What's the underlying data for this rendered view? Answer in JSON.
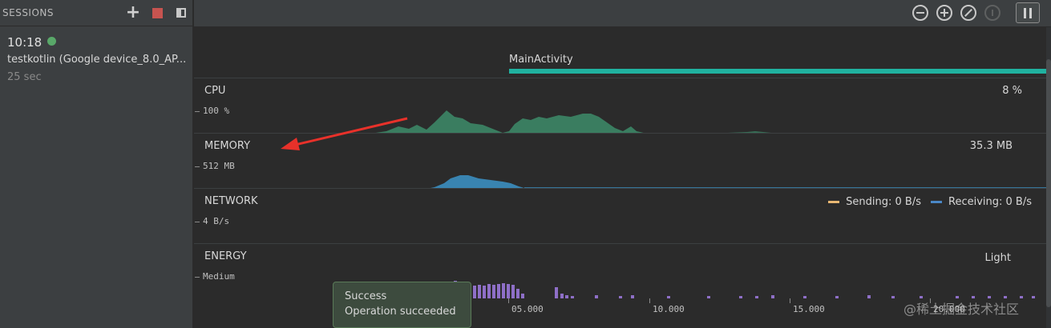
{
  "sessions": {
    "title": "SESSIONS",
    "session": {
      "time": "10:18",
      "name": "testkotlin (Google device_8.0_AP...",
      "duration": "25 sec"
    }
  },
  "activity": {
    "label": "MainActivity"
  },
  "cpu": {
    "title": "CPU",
    "scale": "100 %",
    "value": "8 %"
  },
  "memory": {
    "title": "MEMORY",
    "scale": "512 MB",
    "value": "35.3 MB"
  },
  "network": {
    "title": "NETWORK",
    "scale": "4 B/s",
    "sending": "Sending: 0 B/s",
    "receiving": "Receiving: 0 B/s"
  },
  "energy": {
    "title": "ENERGY",
    "scale": "Medium",
    "value": "Light"
  },
  "timeline": {
    "ticks": [
      "05.000",
      "10.000",
      "15.000",
      "20.000"
    ]
  },
  "toast": {
    "title": "Success",
    "message": "Operation succeeded"
  },
  "watermark": "@稀土掘金技术社区",
  "colors": {
    "accent_teal": "#20b2a0",
    "cpu_fill": "#3d8c6a",
    "memory_fill": "#3b8ec0",
    "energy_bar": "#8e6fc7",
    "session_live": "#59a869",
    "annotation": "#e8312a"
  }
}
